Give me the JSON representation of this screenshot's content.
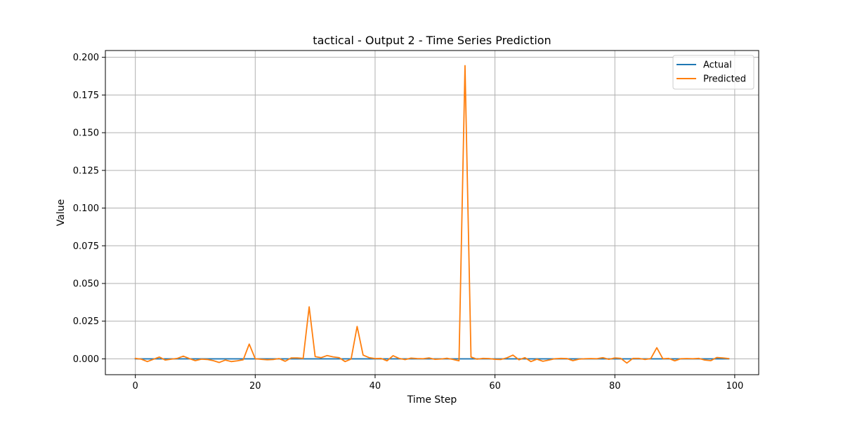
{
  "chart_data": {
    "type": "line",
    "title": "tactical - Output 2 - Time Series Prediction",
    "xlabel": "Time Step",
    "ylabel": "Value",
    "xlim": [
      -5,
      104
    ],
    "ylim": [
      -0.0105,
      0.2045
    ],
    "xticks": [
      0,
      20,
      40,
      60,
      80,
      100
    ],
    "xtick_labels": [
      "0",
      "20",
      "40",
      "60",
      "80",
      "100"
    ],
    "yticks": [
      0.0,
      0.025,
      0.05,
      0.075,
      0.1,
      0.125,
      0.15,
      0.175,
      0.2
    ],
    "ytick_labels": [
      "0.000",
      "0.025",
      "0.050",
      "0.075",
      "0.100",
      "0.125",
      "0.150",
      "0.175",
      "0.200"
    ],
    "grid": true,
    "legend_position": "top-right",
    "series": [
      {
        "name": "Actual",
        "color": "#1f77b4",
        "x": [
          0,
          1,
          2,
          3,
          4,
          5,
          6,
          7,
          8,
          9,
          10,
          11,
          12,
          13,
          14,
          15,
          16,
          17,
          18,
          19,
          20,
          21,
          22,
          23,
          24,
          25,
          26,
          27,
          28,
          29,
          30,
          31,
          32,
          33,
          34,
          35,
          36,
          37,
          38,
          39,
          40,
          41,
          42,
          43,
          44,
          45,
          46,
          47,
          48,
          49,
          50,
          51,
          52,
          53,
          54,
          55,
          56,
          57,
          58,
          59,
          60,
          61,
          62,
          63,
          64,
          65,
          66,
          67,
          68,
          69,
          70,
          71,
          72,
          73,
          74,
          75,
          76,
          77,
          78,
          79,
          80,
          81,
          82,
          83,
          84,
          85,
          86,
          87,
          88,
          89,
          90,
          91,
          92,
          93,
          94,
          95,
          96,
          97,
          98,
          99
        ],
        "values": [
          0,
          0,
          0,
          0,
          0,
          0,
          0,
          0,
          0,
          0,
          0,
          0,
          0,
          0,
          0,
          0,
          0,
          0,
          0,
          0,
          0,
          0,
          0,
          0,
          0,
          0,
          0,
          0,
          0,
          0,
          0,
          0,
          0,
          0,
          0,
          0,
          0,
          0,
          0,
          0,
          0,
          0,
          0,
          0,
          0,
          0,
          0,
          0,
          0,
          0,
          0,
          0,
          0,
          0,
          0,
          0,
          0,
          0,
          0,
          0,
          0,
          0,
          0,
          0,
          0,
          0,
          0,
          0,
          0,
          0,
          0,
          0,
          0,
          0,
          0,
          0,
          0,
          0,
          0,
          0,
          0,
          0,
          0,
          0,
          0,
          0,
          0,
          0,
          0,
          0,
          0,
          0,
          0,
          0,
          0,
          0,
          0,
          0,
          0,
          0
        ]
      },
      {
        "name": "Predicted",
        "color": "#ff7f0e",
        "x": [
          0,
          1,
          2,
          3,
          4,
          5,
          6,
          7,
          8,
          9,
          10,
          11,
          12,
          13,
          14,
          15,
          16,
          17,
          18,
          19,
          20,
          21,
          22,
          23,
          24,
          25,
          26,
          27,
          28,
          29,
          30,
          31,
          32,
          33,
          34,
          35,
          36,
          37,
          38,
          39,
          40,
          41,
          42,
          43,
          44,
          45,
          46,
          47,
          48,
          49,
          50,
          51,
          52,
          53,
          54,
          55,
          56,
          57,
          58,
          59,
          60,
          61,
          62,
          63,
          64,
          65,
          66,
          67,
          68,
          69,
          70,
          71,
          72,
          73,
          74,
          75,
          76,
          77,
          78,
          79,
          80,
          81,
          82,
          83,
          84,
          85,
          86,
          87,
          88,
          89,
          90,
          91,
          92,
          93,
          94,
          95,
          96,
          97,
          98,
          99
        ],
        "values": [
          0.0003,
          -0.0002,
          -0.0018,
          -0.0003,
          0.0012,
          -0.0008,
          -0.0002,
          0.0003,
          0.0018,
          0.0002,
          -0.0012,
          -0.0002,
          -0.0004,
          -0.0012,
          -0.0024,
          -0.0008,
          -0.0018,
          -0.0013,
          -0.0006,
          0.0098,
          0.0001,
          -0.0003,
          -0.0006,
          -0.0004,
          0.0002,
          -0.0016,
          0.0006,
          0.0006,
          0.0003,
          0.0345,
          0.0015,
          0.0008,
          0.0022,
          0.0013,
          0.0008,
          -0.0018,
          -0.0001,
          0.0215,
          0.0025,
          0.0008,
          0.0002,
          0.0003,
          -0.0013,
          0.0021,
          0.0003,
          -0.0005,
          0.0005,
          0.0002,
          0.0001,
          0.0006,
          -0.0003,
          -0.0001,
          0.0004,
          -0.0004,
          -0.0013,
          0.1945,
          0.0012,
          -0.0002,
          0.0003,
          0.0002,
          -0.0003,
          -0.0004,
          0.0007,
          0.0025,
          -0.0006,
          0.0008,
          -0.0018,
          -0.0002,
          -0.0016,
          -0.0008,
          0.0001,
          0.0003,
          0.0002,
          -0.0012,
          -0.0002,
          0.0001,
          0.0002,
          0.0001,
          0.0008,
          -0.0003,
          0.0006,
          0.0003,
          -0.0028,
          0.0003,
          0.0003,
          -0.0004,
          0.0002,
          0.0074,
          0.0001,
          0.0003,
          -0.0013,
          0.0001,
          0.0002,
          0.0001,
          0.0003,
          -0.0008,
          -0.0012,
          0.0009,
          0.0006,
          0.0002
        ]
      }
    ]
  }
}
